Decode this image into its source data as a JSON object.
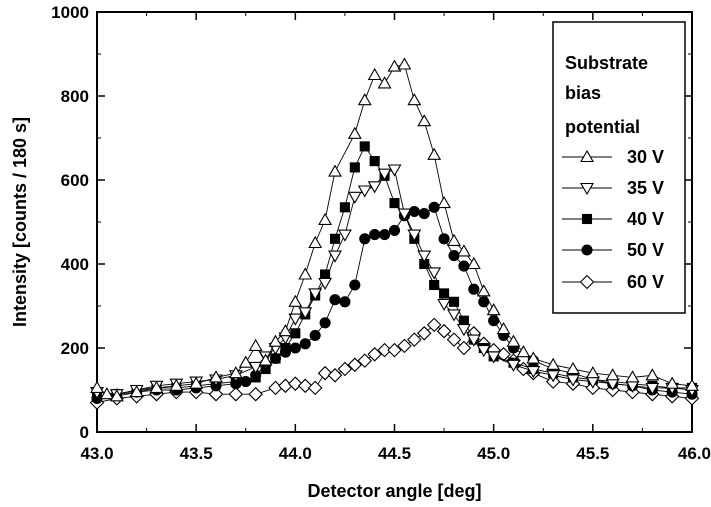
{
  "chart_data": {
    "type": "scatter",
    "title": "",
    "xlabel": "Detector angle [deg]",
    "ylabel": "Intensity [counts / 180 s]",
    "xlim": [
      43.0,
      46.0
    ],
    "ylim": [
      0,
      1000
    ],
    "x_ticks": [
      "43.0",
      "43.5",
      "44.0",
      "44.5",
      "45.0",
      "45.5",
      "46.0"
    ],
    "y_ticks": [
      "0",
      "200",
      "400",
      "600",
      "800",
      "1000"
    ],
    "legend": {
      "title_lines": [
        "Substrate",
        "bias",
        "potential"
      ],
      "placement": "top-right"
    },
    "grid": false,
    "series": [
      {
        "name": "30 V",
        "marker": "triangle-up-open",
        "points": [
          [
            43.0,
            105
          ],
          [
            43.05,
            90
          ],
          [
            43.1,
            85
          ],
          [
            43.2,
            95
          ],
          [
            43.3,
            105
          ],
          [
            43.4,
            110
          ],
          [
            43.5,
            115
          ],
          [
            43.6,
            130
          ],
          [
            43.7,
            140
          ],
          [
            43.75,
            165
          ],
          [
            43.8,
            205
          ],
          [
            43.85,
            170
          ],
          [
            43.9,
            215
          ],
          [
            43.95,
            240
          ],
          [
            44.0,
            310
          ],
          [
            44.05,
            375
          ],
          [
            44.1,
            450
          ],
          [
            44.15,
            505
          ],
          [
            44.2,
            620
          ],
          [
            44.3,
            710
          ],
          [
            44.35,
            790
          ],
          [
            44.4,
            850
          ],
          [
            44.45,
            830
          ],
          [
            44.5,
            870
          ],
          [
            44.55,
            875
          ],
          [
            44.6,
            790
          ],
          [
            44.65,
            740
          ],
          [
            44.7,
            660
          ],
          [
            44.75,
            545
          ],
          [
            44.8,
            455
          ],
          [
            44.85,
            430
          ],
          [
            44.9,
            400
          ],
          [
            44.95,
            335
          ],
          [
            45.0,
            290
          ],
          [
            45.05,
            245
          ],
          [
            45.1,
            215
          ],
          [
            45.15,
            190
          ],
          [
            45.2,
            175
          ],
          [
            45.3,
            160
          ],
          [
            45.4,
            150
          ],
          [
            45.5,
            140
          ],
          [
            45.6,
            135
          ],
          [
            45.7,
            130
          ],
          [
            45.8,
            135
          ],
          [
            45.9,
            115
          ],
          [
            46.0,
            110
          ]
        ]
      },
      {
        "name": "35 V",
        "marker": "triangle-down-open",
        "points": [
          [
            43.0,
            95
          ],
          [
            43.1,
            90
          ],
          [
            43.2,
            100
          ],
          [
            43.3,
            110
          ],
          [
            43.4,
            115
          ],
          [
            43.5,
            120
          ],
          [
            43.6,
            125
          ],
          [
            43.7,
            135
          ],
          [
            43.8,
            155
          ],
          [
            43.85,
            180
          ],
          [
            43.9,
            200
          ],
          [
            43.95,
            225
          ],
          [
            44.0,
            270
          ],
          [
            44.05,
            285
          ],
          [
            44.1,
            330
          ],
          [
            44.15,
            355
          ],
          [
            44.2,
            420
          ],
          [
            44.25,
            470
          ],
          [
            44.3,
            560
          ],
          [
            44.35,
            575
          ],
          [
            44.4,
            585
          ],
          [
            44.45,
            615
          ],
          [
            44.5,
            625
          ],
          [
            44.55,
            520
          ],
          [
            44.6,
            470
          ],
          [
            44.65,
            420
          ],
          [
            44.7,
            380
          ],
          [
            44.75,
            305
          ],
          [
            44.8,
            280
          ],
          [
            44.85,
            245
          ],
          [
            44.9,
            220
          ],
          [
            44.95,
            195
          ],
          [
            45.0,
            180
          ],
          [
            45.1,
            160
          ],
          [
            45.2,
            145
          ],
          [
            45.3,
            135
          ],
          [
            45.4,
            125
          ],
          [
            45.5,
            120
          ],
          [
            45.6,
            115
          ],
          [
            45.7,
            110
          ],
          [
            45.8,
            105
          ],
          [
            45.9,
            105
          ],
          [
            46.0,
            100
          ]
        ]
      },
      {
        "name": "40 V",
        "marker": "square-filled",
        "points": [
          [
            43.0,
            85
          ],
          [
            43.1,
            90
          ],
          [
            43.2,
            100
          ],
          [
            43.3,
            105
          ],
          [
            43.4,
            105
          ],
          [
            43.5,
            110
          ],
          [
            43.6,
            115
          ],
          [
            43.7,
            120
          ],
          [
            43.8,
            130
          ],
          [
            43.85,
            150
          ],
          [
            43.9,
            175
          ],
          [
            43.95,
            200
          ],
          [
            44.0,
            235
          ],
          [
            44.05,
            280
          ],
          [
            44.1,
            325
          ],
          [
            44.15,
            375
          ],
          [
            44.2,
            460
          ],
          [
            44.25,
            535
          ],
          [
            44.3,
            630
          ],
          [
            44.35,
            680
          ],
          [
            44.4,
            645
          ],
          [
            44.45,
            610
          ],
          [
            44.5,
            545
          ],
          [
            44.55,
            520
          ],
          [
            44.6,
            460
          ],
          [
            44.65,
            400
          ],
          [
            44.7,
            350
          ],
          [
            44.75,
            330
          ],
          [
            44.8,
            310
          ],
          [
            44.85,
            265
          ],
          [
            44.9,
            220
          ],
          [
            44.95,
            200
          ],
          [
            45.0,
            180
          ],
          [
            45.1,
            165
          ],
          [
            45.2,
            150
          ],
          [
            45.3,
            140
          ],
          [
            45.4,
            130
          ],
          [
            45.5,
            125
          ],
          [
            45.6,
            120
          ],
          [
            45.7,
            115
          ],
          [
            45.8,
            110
          ],
          [
            45.9,
            105
          ],
          [
            46.0,
            105
          ]
        ]
      },
      {
        "name": "50 V",
        "marker": "circle-filled",
        "points": [
          [
            43.0,
            80
          ],
          [
            43.1,
            90
          ],
          [
            43.2,
            95
          ],
          [
            43.3,
            100
          ],
          [
            43.4,
            100
          ],
          [
            43.5,
            105
          ],
          [
            43.6,
            110
          ],
          [
            43.7,
            115
          ],
          [
            43.75,
            120
          ],
          [
            43.8,
            135
          ],
          [
            43.85,
            160
          ],
          [
            43.9,
            175
          ],
          [
            43.95,
            190
          ],
          [
            44.0,
            200
          ],
          [
            44.05,
            210
          ],
          [
            44.1,
            230
          ],
          [
            44.15,
            260
          ],
          [
            44.2,
            315
          ],
          [
            44.25,
            310
          ],
          [
            44.3,
            350
          ],
          [
            44.35,
            460
          ],
          [
            44.4,
            470
          ],
          [
            44.45,
            470
          ],
          [
            44.5,
            480
          ],
          [
            44.55,
            515
          ],
          [
            44.6,
            525
          ],
          [
            44.65,
            520
          ],
          [
            44.7,
            535
          ],
          [
            44.75,
            460
          ],
          [
            44.8,
            420
          ],
          [
            44.85,
            395
          ],
          [
            44.9,
            340
          ],
          [
            44.95,
            310
          ],
          [
            45.0,
            265
          ],
          [
            45.05,
            230
          ],
          [
            45.1,
            200
          ],
          [
            45.2,
            170
          ],
          [
            45.3,
            150
          ],
          [
            45.4,
            140
          ],
          [
            45.5,
            125
          ],
          [
            45.6,
            115
          ],
          [
            45.7,
            110
          ],
          [
            45.8,
            100
          ],
          [
            45.9,
            95
          ],
          [
            46.0,
            90
          ]
        ]
      },
      {
        "name": "60 V",
        "marker": "diamond-open",
        "points": [
          [
            43.0,
            70
          ],
          [
            43.1,
            80
          ],
          [
            43.2,
            85
          ],
          [
            43.3,
            90
          ],
          [
            43.4,
            95
          ],
          [
            43.5,
            95
          ],
          [
            43.6,
            90
          ],
          [
            43.7,
            90
          ],
          [
            43.8,
            90
          ],
          [
            43.9,
            105
          ],
          [
            43.95,
            110
          ],
          [
            44.0,
            115
          ],
          [
            44.05,
            110
          ],
          [
            44.1,
            105
          ],
          [
            44.15,
            140
          ],
          [
            44.2,
            135
          ],
          [
            44.25,
            150
          ],
          [
            44.3,
            160
          ],
          [
            44.35,
            170
          ],
          [
            44.4,
            185
          ],
          [
            44.45,
            195
          ],
          [
            44.5,
            195
          ],
          [
            44.55,
            205
          ],
          [
            44.6,
            220
          ],
          [
            44.65,
            235
          ],
          [
            44.7,
            255
          ],
          [
            44.75,
            240
          ],
          [
            44.8,
            220
          ],
          [
            44.85,
            200
          ],
          [
            44.9,
            235
          ],
          [
            44.95,
            210
          ],
          [
            45.0,
            195
          ],
          [
            45.05,
            185
          ],
          [
            45.1,
            170
          ],
          [
            45.15,
            150
          ],
          [
            45.2,
            140
          ],
          [
            45.3,
            120
          ],
          [
            45.4,
            115
          ],
          [
            45.5,
            105
          ],
          [
            45.6,
            100
          ],
          [
            45.7,
            95
          ],
          [
            45.8,
            90
          ],
          [
            45.9,
            85
          ],
          [
            46.0,
            80
          ]
        ]
      }
    ]
  }
}
